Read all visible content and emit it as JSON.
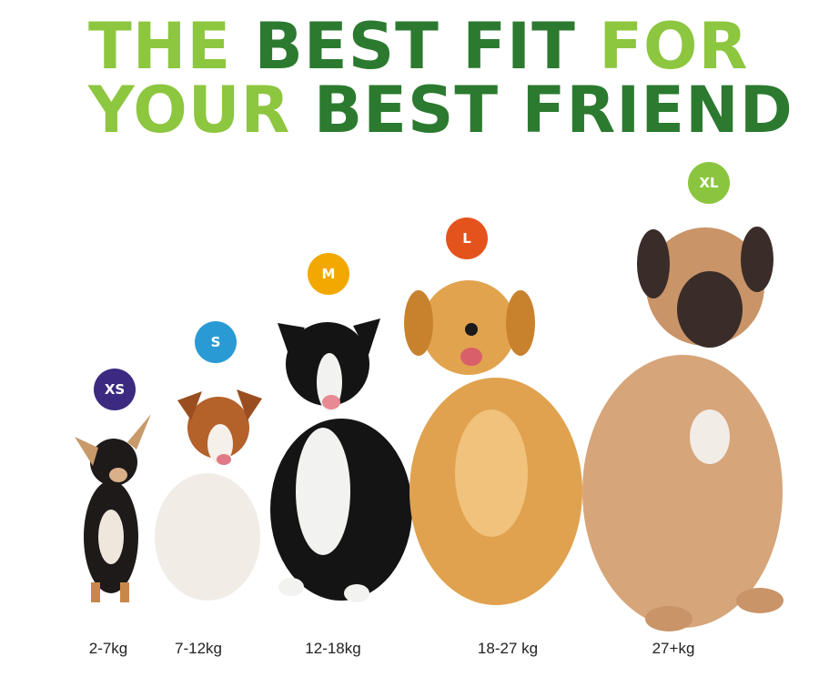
{
  "headline": {
    "line1": [
      {
        "text": "THE",
        "tone": "light"
      },
      {
        "text": "BEST FIT",
        "tone": "dark"
      },
      {
        "text": "FOR",
        "tone": "light"
      }
    ],
    "line2": [
      {
        "text": "YOUR",
        "tone": "light"
      },
      {
        "text": "BEST FRIEND",
        "tone": "dark"
      }
    ]
  },
  "colors": {
    "light_green": "#8dc63f",
    "dark_green": "#2b7a2f"
  },
  "sizes": [
    {
      "label": "XS",
      "weight": "2-7kg",
      "color": "#3b2a80",
      "dog": "chihuahua"
    },
    {
      "label": "S",
      "weight": "7-12kg",
      "color": "#2a9ad5",
      "dog": "jack-russell-terrier"
    },
    {
      "label": "M",
      "weight": "12-18kg",
      "color": "#f2a800",
      "dog": "border-collie"
    },
    {
      "label": "L",
      "weight": "18-27 kg",
      "color": "#e4531c",
      "dog": "golden-retriever"
    },
    {
      "label": "XL",
      "weight": "27+kg",
      "color": "#8bc53f",
      "dog": "mastiff"
    }
  ]
}
